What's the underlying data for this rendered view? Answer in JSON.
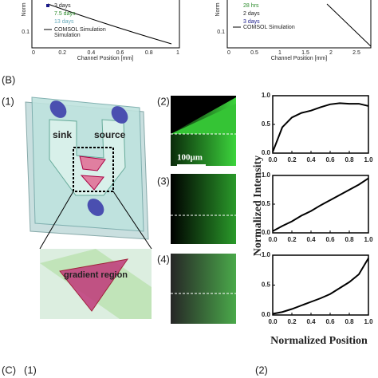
{
  "panel_a": {
    "left": {
      "y_label": "Norm",
      "ytick": "0.1",
      "legend": [
        "3 days",
        "7.5 days",
        "13 days",
        "COMSOL Simulation"
      ],
      "xticks": [
        "0",
        "0.2",
        "0.4",
        "0.6",
        "0.8",
        "1"
      ],
      "x_label": "Channel Position [mm]"
    },
    "right": {
      "y_label": "Norm",
      "ytick": "0.1",
      "legend": [
        "28 hrs",
        "2 days",
        "3 days",
        "COMSOL Simulation"
      ],
      "xticks": [
        "0",
        "0.5",
        "1",
        "1.5",
        "2",
        "2.5"
      ],
      "x_label": "Channel Position [mm]"
    }
  },
  "panel_b": {
    "label": "(B)",
    "sub1": "(1)",
    "sub2": "(2)",
    "sub3": "(3)",
    "sub4": "(4)",
    "sink": "sink",
    "source": "source",
    "gradient": "gradient region",
    "scale": "100μm",
    "y_label": "Normalized Intensity",
    "x_label": "Normalized Position"
  },
  "panel_c": {
    "label": "(C)",
    "sub1": "(1)",
    "sub2": "(2)"
  },
  "chart_data": [
    {
      "type": "line",
      "x": [
        0,
        0.1,
        0.2,
        0.3,
        0.4,
        0.5,
        0.6,
        0.7,
        0.8,
        0.9,
        1.0
      ],
      "values": [
        0.02,
        0.45,
        0.62,
        0.7,
        0.74,
        0.8,
        0.85,
        0.87,
        0.86,
        0.86,
        0.82
      ],
      "color": "#000000",
      "xlim": [
        0,
        1
      ],
      "ylim": [
        0,
        1
      ],
      "xticks": [
        {
          "value": 0,
          "label": "0.0"
        },
        0.2,
        0.4,
        0.6,
        0.8,
        {
          "value": 1,
          "label": "1.0"
        }
      ],
      "yticks": [
        {
          "value": 0,
          "label": "0.0"
        },
        0.5,
        {
          "value": 1,
          "label": "1.0"
        }
      ]
    },
    {
      "type": "line",
      "x": [
        0,
        0.1,
        0.2,
        0.3,
        0.4,
        0.5,
        0.6,
        0.7,
        0.8,
        0.9,
        1.0
      ],
      "values": [
        0.03,
        0.12,
        0.2,
        0.3,
        0.38,
        0.48,
        0.57,
        0.66,
        0.75,
        0.84,
        0.95
      ],
      "color": "#000000",
      "xlim": [
        0,
        1
      ],
      "ylim": [
        0,
        1
      ],
      "xticks": [
        {
          "value": 0,
          "label": "0.0"
        },
        0.2,
        0.4,
        0.6,
        0.8,
        {
          "value": 1,
          "label": "1.0"
        }
      ],
      "yticks": [
        {
          "value": 0,
          "label": "0.0"
        },
        0.5,
        {
          "value": 1,
          "label": "1.0"
        }
      ]
    },
    {
      "type": "line",
      "x": [
        0,
        0.1,
        0.2,
        0.3,
        0.4,
        0.5,
        0.6,
        0.7,
        0.8,
        0.9,
        1.0
      ],
      "values": [
        0.02,
        0.05,
        0.1,
        0.16,
        0.22,
        0.28,
        0.35,
        0.45,
        0.55,
        0.68,
        0.95
      ],
      "color": "#000000",
      "xlim": [
        0,
        1
      ],
      "ylim": [
        0,
        1
      ],
      "xticks": [
        {
          "value": 0,
          "label": "0.0"
        },
        0.2,
        0.4,
        0.6,
        0.8,
        {
          "value": 1,
          "label": "1.0"
        }
      ],
      "yticks": [
        {
          "value": 0,
          "label": "0.0"
        },
        0.5,
        {
          "value": 1,
          "label": "1.0"
        }
      ]
    }
  ]
}
